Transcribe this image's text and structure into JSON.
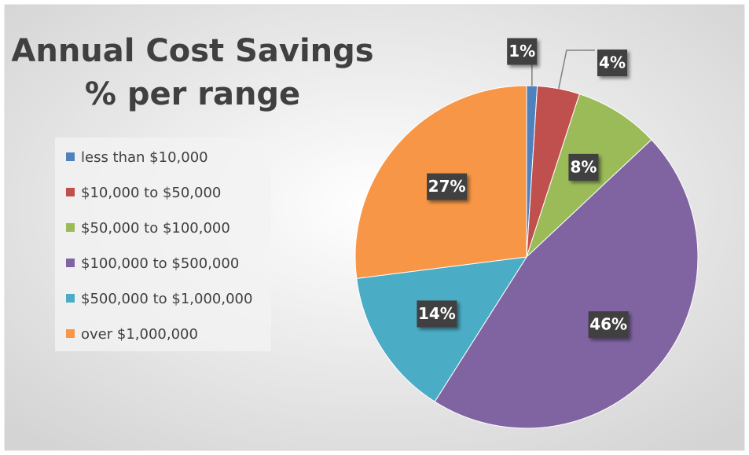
{
  "chart_data": {
    "type": "pie",
    "title": [
      "Annual Cost Savings",
      "% per range"
    ],
    "categories": [
      "less than $10,000",
      "$10,000 to $50,000",
      "$50,000 to $100,000",
      "$100,000 to $500,000",
      "$500,000 to $1,000,000",
      "over $1,000,000"
    ],
    "values": [
      1,
      4,
      8,
      46,
      14,
      27
    ],
    "value_labels": [
      "1%",
      "4%",
      "8%",
      "46%",
      "14%",
      "27%"
    ],
    "colors": [
      "#4f81bd",
      "#c0504d",
      "#9bbb59",
      "#8064a2",
      "#4bacc6",
      "#f79646"
    ],
    "legend": "left"
  }
}
